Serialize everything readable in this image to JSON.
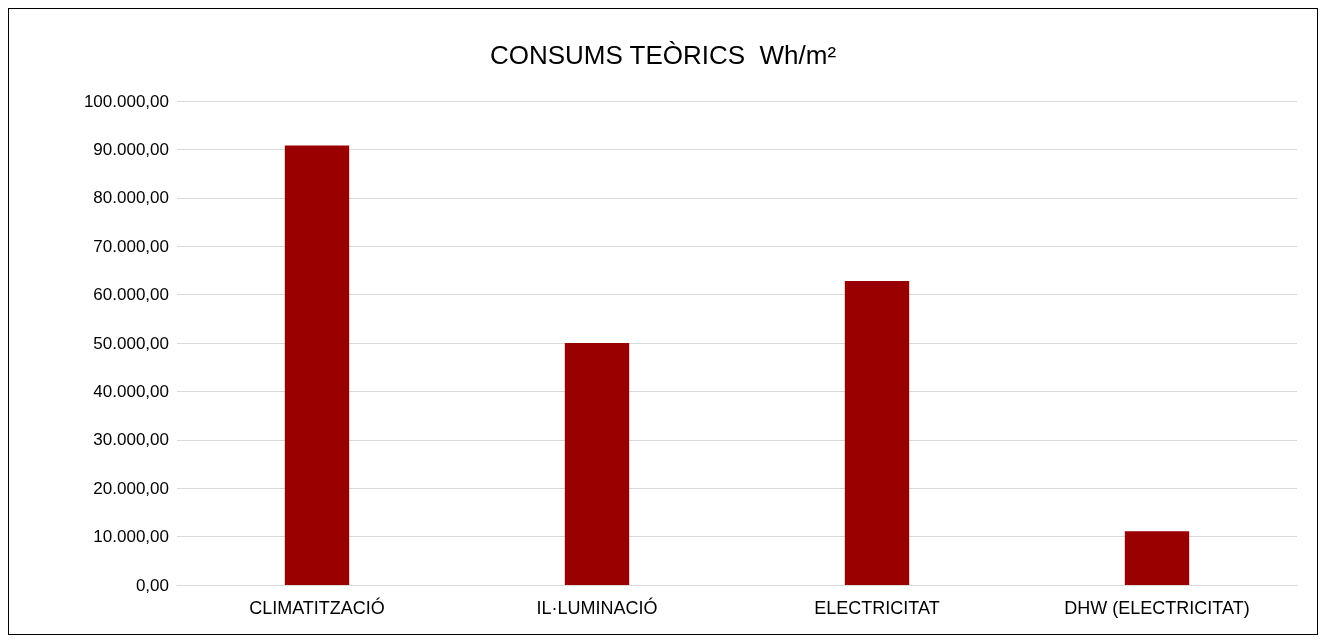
{
  "chart_data": {
    "type": "bar",
    "title": "CONSUMS TEÒRICS  Wh/m²",
    "categories": [
      "CLIMATITZACIÓ",
      "IL·LUMINACIÓ",
      "ELECTRICITAT",
      "DHW (ELECTRICITAT)"
    ],
    "values": [
      90800,
      50000,
      62800,
      11100
    ],
    "color": "#990000",
    "ylim": [
      0,
      100000
    ],
    "yticks": [
      {
        "value": 0,
        "label": "0,00"
      },
      {
        "value": 10000,
        "label": "10.000,00"
      },
      {
        "value": 20000,
        "label": "20.000,00"
      },
      {
        "value": 30000,
        "label": "30.000,00"
      },
      {
        "value": 40000,
        "label": "40.000,00"
      },
      {
        "value": 50000,
        "label": "50.000,00"
      },
      {
        "value": 60000,
        "label": "60.000,00"
      },
      {
        "value": 70000,
        "label": "70.000,00"
      },
      {
        "value": 80000,
        "label": "80.000,00"
      },
      {
        "value": 90000,
        "label": "90.000,00"
      },
      {
        "value": 100000,
        "label": "100.000,00"
      }
    ],
    "grid": "y"
  }
}
